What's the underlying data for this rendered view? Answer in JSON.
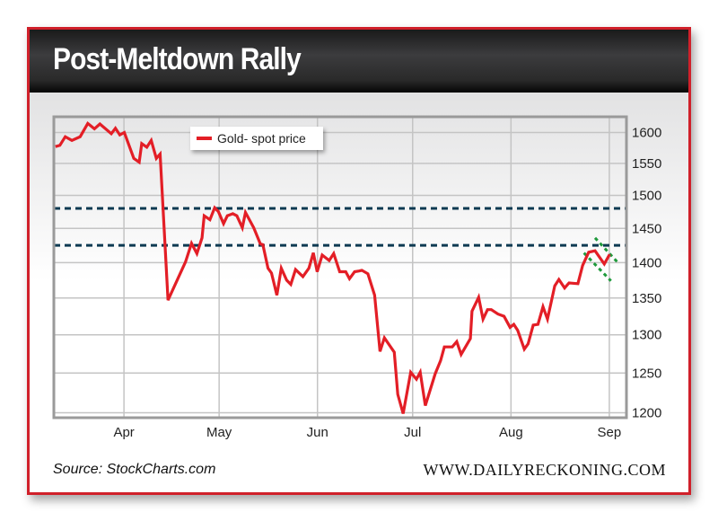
{
  "header": {
    "title": "Post-Meltdown Rally"
  },
  "footer": {
    "source": "Source: StockCharts.com",
    "brand": "WWW.DAILYRECKONING.COM"
  },
  "colors": {
    "line": "#e31e26",
    "resistance": "#0d3a52",
    "channel": "#1f9a3c",
    "frame": "#d0202a"
  },
  "chart_data": {
    "type": "line",
    "title": "Post-Meltdown Rally",
    "xlabel": "",
    "ylabel": "",
    "x_unit": "days since Mar 1",
    "xlim": [
      8.9,
      189.4
    ],
    "ylim": [
      1194,
      1626
    ],
    "yscale": "log",
    "grid": true,
    "legend_position": "top-center",
    "x_ticks": [
      {
        "label": "Apr",
        "x": 31
      },
      {
        "label": "May",
        "x": 61
      },
      {
        "label": "Jun",
        "x": 92
      },
      {
        "label": "Jul",
        "x": 122
      },
      {
        "label": "Aug",
        "x": 153
      },
      {
        "label": "Sep",
        "x": 184
      }
    ],
    "y_ticks": [
      1200,
      1250,
      1300,
      1350,
      1400,
      1450,
      1500,
      1550,
      1600
    ],
    "series": [
      {
        "name": "Gold- spot price",
        "x": [
          9.4,
          10.8,
          12.5,
          14.6,
          17.2,
          19.6,
          21.7,
          23.4,
          27.0,
          28.3,
          29.7,
          31.1,
          34.1,
          35.8,
          36.6,
          38.2,
          39.6,
          41.2,
          42.4,
          44.9,
          50.4,
          52.3,
          54.0,
          55.6,
          56.3,
          58.1,
          59.6,
          60.8,
          62.4,
          63.6,
          65.3,
          66.6,
          68.3,
          69.3,
          71.9,
          74.0,
          74.8,
          76.4,
          77.5,
          79.2,
          80.6,
          82.3,
          83.6,
          85.1,
          87.4,
          89.3,
          90.7,
          91.9,
          93.5,
          95.7,
          97.1,
          99.0,
          100.9,
          102.1,
          103.7,
          105.1,
          106.0,
          107.9,
          110.0,
          111.7,
          113.1,
          116.2,
          117.3,
          119.0,
          121.4,
          123.2,
          124.4,
          126.0,
          129.1,
          130.8,
          132.0,
          134.5,
          135.9,
          137.3,
          140.2,
          140.7,
          142.8,
          144.2,
          145.6,
          146.8,
          148.9,
          150.8,
          152.7,
          153.9,
          155.1,
          157.2,
          158.4,
          160.0,
          161.5,
          163.1,
          164.5,
          166.8,
          168.1,
          169.9,
          171.3,
          174.1,
          175.6,
          177.5,
          179.5,
          182.4,
          184.1
        ],
        "values": [
          1577,
          1579,
          1593,
          1587,
          1593,
          1615,
          1606,
          1614,
          1598,
          1607,
          1596,
          1600,
          1558,
          1552,
          1582,
          1576,
          1587,
          1558,
          1565,
          1347,
          1401,
          1428,
          1413,
          1436,
          1469,
          1463,
          1481,
          1475,
          1457,
          1469,
          1472,
          1469,
          1451,
          1474,
          1451,
          1427,
          1426,
          1392,
          1385,
          1354,
          1392,
          1375,
          1369,
          1390,
          1380,
          1392,
          1414,
          1387,
          1411,
          1403,
          1413,
          1387,
          1387,
          1377,
          1387,
          1388,
          1389,
          1384,
          1354,
          1278,
          1296,
          1277,
          1223,
          1199,
          1251,
          1242,
          1251,
          1209,
          1249,
          1266,
          1284,
          1284,
          1291,
          1274,
          1295,
          1332,
          1351,
          1321,
          1334,
          1334,
          1328,
          1325,
          1310,
          1314,
          1306,
          1281,
          1288,
          1313,
          1314,
          1338,
          1321,
          1367,
          1376,
          1364,
          1371,
          1370,
          1396,
          1415,
          1417,
          1398,
          1412
        ]
      }
    ],
    "reference_lines": [
      {
        "name": "resistance-upper",
        "value": 1480
      },
      {
        "name": "resistance-lower",
        "value": 1425
      }
    ],
    "channel_lines": [
      {
        "name": "channel-upper",
        "x": [
          179.5,
          187.1
        ],
        "values": [
          1436,
          1398
        ]
      },
      {
        "name": "channel-lower",
        "x": [
          176.0,
          184.5
        ],
        "values": [
          1414,
          1374
        ]
      }
    ]
  }
}
